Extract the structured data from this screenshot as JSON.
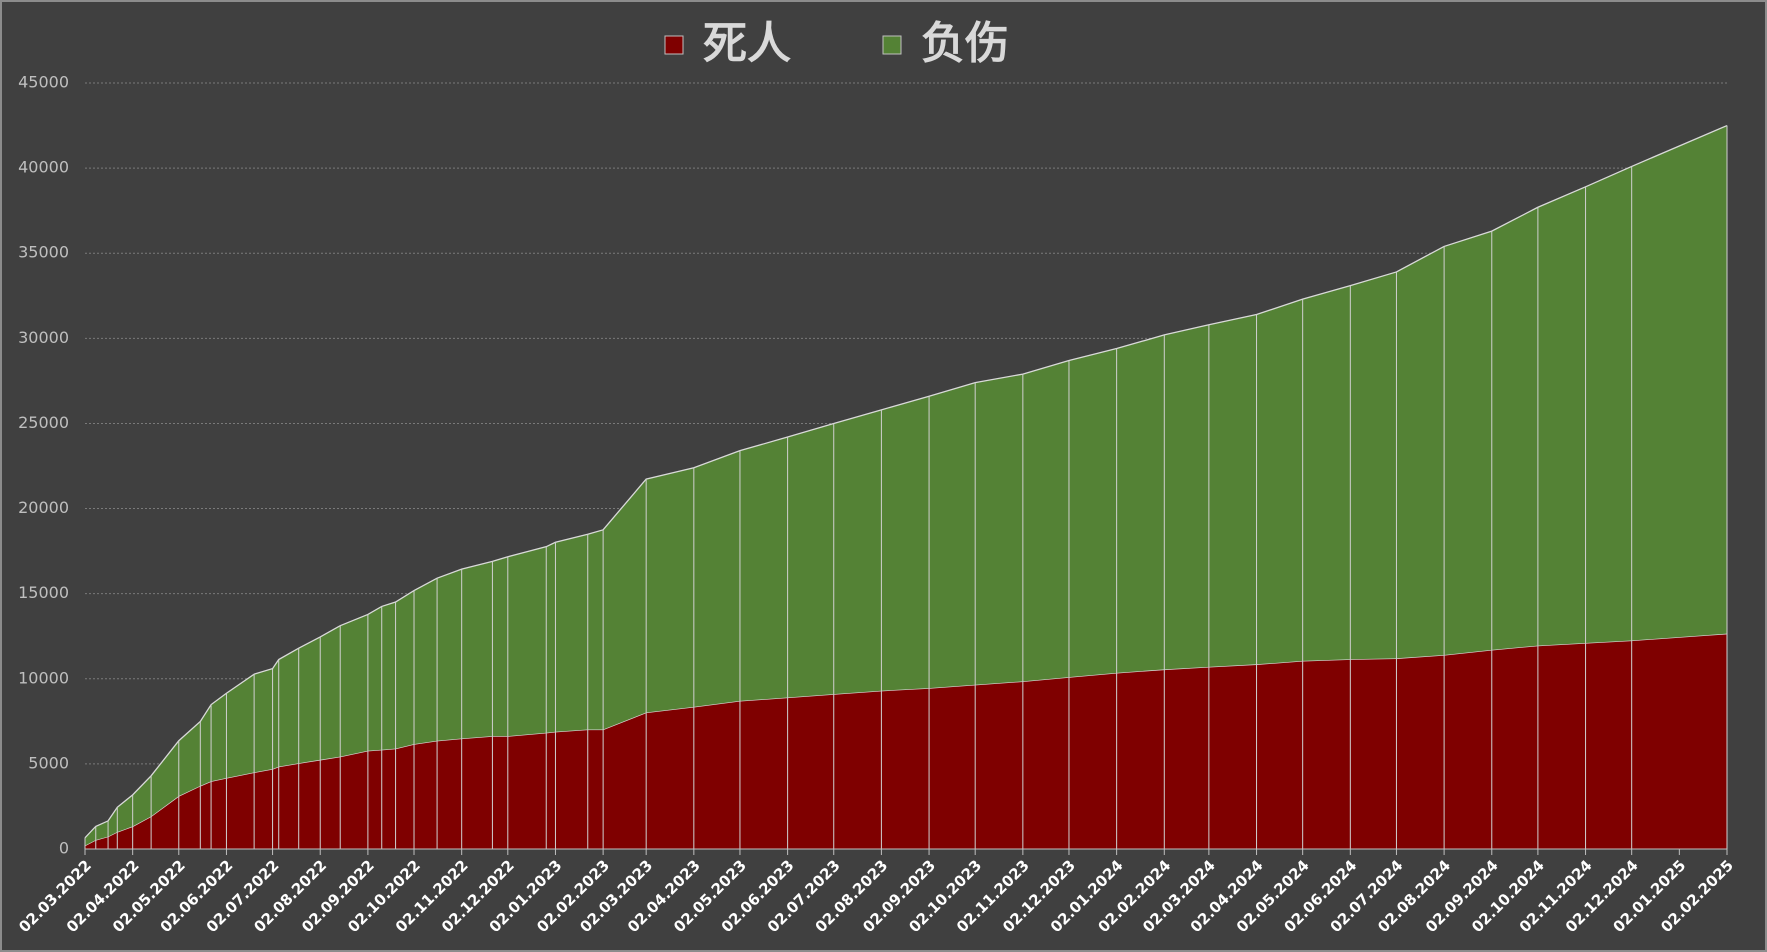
{
  "chart_data": {
    "type": "stacked_area",
    "x": [
      "02.03.2022",
      "09.03.2022",
      "17.03.2022",
      "23.03.2022",
      "02.04.2022",
      "14.04.2022",
      "02.05.2022",
      "16.05.2022",
      "23.05.2022",
      "02.06.2022",
      "20.06.2022",
      "02.07.2022",
      "06.07.2022",
      "19.07.2022",
      "02.08.2022",
      "15.08.2022",
      "02.09.2022",
      "11.09.2022",
      "20.09.2022",
      "02.10.2022",
      "17.10.2022",
      "02.11.2022",
      "22.11.2022",
      "02.12.2022",
      "27.12.2022",
      "02.01.2023",
      "23.01.2023",
      "02.02.2023",
      "02.03.2023",
      "02.04.2023",
      "02.05.2023",
      "02.06.2023",
      "02.07.2023",
      "02.08.2023",
      "02.09.2023",
      "02.10.2023",
      "02.11.2023",
      "02.12.2023",
      "02.01.2024",
      "02.02.2024",
      "02.03.2024",
      "02.04.2024",
      "02.05.2024",
      "02.06.2024",
      "02.07.2024",
      "02.08.2024",
      "02.09.2024",
      "02.10.2024",
      "02.11.2024",
      "02.12.2024",
      "02.02.2025"
    ],
    "series": [
      {
        "name": "死人",
        "color": "#7f0000",
        "values": [
          200,
          530,
          730,
          1000,
          1330,
          1920,
          3110,
          3710,
          3980,
          4170,
          4500,
          4700,
          4840,
          5040,
          5240,
          5430,
          5770,
          5830,
          5900,
          6160,
          6360,
          6490,
          6630,
          6630,
          6830,
          6890,
          7020,
          7020,
          8020,
          8350,
          8700,
          8900,
          9100,
          9300,
          9450,
          9650,
          9850,
          10100,
          10350,
          10550,
          10700,
          10850,
          11050,
          11150,
          11200,
          11400,
          11700,
          11950,
          12100,
          12250,
          12650
        ]
      },
      {
        "name": "负伤",
        "color": "#548235",
        "values": [
          460,
          800,
          920,
          1450,
          1850,
          2380,
          3250,
          3780,
          4500,
          4980,
          5770,
          5900,
          6290,
          6760,
          7220,
          7690,
          8010,
          8420,
          8610,
          9020,
          9550,
          9950,
          10270,
          10540,
          10930,
          11130,
          11470,
          11730,
          13710,
          14050,
          14700,
          15300,
          15900,
          16500,
          17150,
          17750,
          18050,
          18600,
          19050,
          19650,
          20100,
          20550,
          21250,
          21950,
          22700,
          24000,
          24600,
          25750,
          26800,
          27850,
          29850
        ]
      }
    ],
    "xlim": [
      "02.03.2022",
      "02.02.2025"
    ],
    "xticks": [
      "02.03.2022",
      "02.04.2022",
      "02.05.2022",
      "02.06.2022",
      "02.07.2022",
      "02.08.2022",
      "02.09.2022",
      "02.10.2022",
      "02.11.2022",
      "02.12.2022",
      "02.01.2023",
      "02.02.2023",
      "02.03.2023",
      "02.04.2023",
      "02.05.2023",
      "02.06.2023",
      "02.07.2023",
      "02.08.2023",
      "02.09.2023",
      "02.10.2023",
      "02.11.2023",
      "02.12.2023",
      "02.01.2024",
      "02.02.2024",
      "02.03.2024",
      "02.04.2024",
      "02.05.2024",
      "02.06.2024",
      "02.07.2024",
      "02.08.2024",
      "02.09.2024",
      "02.10.2024",
      "02.11.2024",
      "02.12.2024",
      "02.01.2025",
      "02.02.2025"
    ],
    "ylim": [
      0,
      45000
    ],
    "yticks": [
      0,
      5000,
      10000,
      15000,
      20000,
      25000,
      30000,
      35000,
      40000,
      45000
    ],
    "grid": true,
    "legend": "top"
  }
}
